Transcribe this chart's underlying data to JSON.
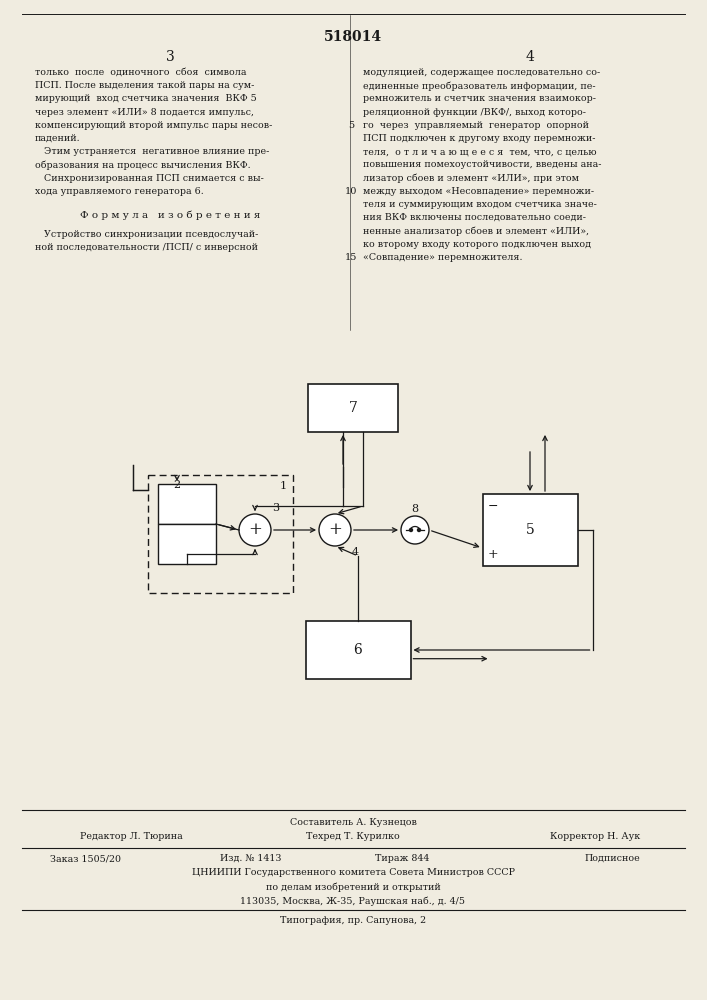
{
  "page_number": "518014",
  "col_left": "3",
  "col_right": "4",
  "text_left": [
    "только  после  одиночного  сбоя  символа",
    "ПСП. После выделения такой пары на сум-",
    "мирующий  вход счетчика значения  ВКФ 5",
    "через элемент «ИЛИ» 8 подается импульс,",
    "компенсирующий второй импульс пары несов-",
    "падений.",
    "   Этим устраняется  негативное влияние пре-",
    "образования на процесс вычисления ВКФ.",
    "   Синхронизированная ПСП снимается с вы-",
    "хода управляемого генератора 6."
  ],
  "formula_title": "Ф о р м у л а   и з о б р е т е н и я",
  "formula_text": [
    "   Устройство синхронизации псевдослучай-",
    "ной последовательности /ПСП/ с инверсной"
  ],
  "text_right": [
    "модуляцией, содержащее последовательно со-",
    "единенные преобразователь информации, пе-",
    "ремножитель и счетчик значения взаимокор-",
    "реляционной функции /ВКФ/, выход которо-",
    "го  через  управляемый  генератор  опорной",
    "ПСП подключен к другому входу перемножи-",
    "теля,  о т л и ч а ю щ е е с я  тем, что, с целью",
    "повышения помехоустойчивости, введены ана-",
    "лизатор сбоев и элемент «ИЛИ», при этом",
    "между выходом «Несовпадение» перемножи-",
    "теля и суммирующим входом счетчика значе-",
    "ния ВКФ включены последовательно соеди-",
    "ненные анализатор сбоев и элемент «ИЛИ»,",
    "ко второму входу которого подключен выход",
    "«Совпадение» перемножителя."
  ],
  "line_number_5": "5",
  "line_number_10": "10",
  "line_number_15": "15",
  "footer_composer": "Составитель А. Кузнецов",
  "footer_editor": "Редактор Л. Тюрина",
  "footer_techred": "Техред Т. Курилко",
  "footer_corrector": "Корректор Н. Аук",
  "footer_order": "Заказ 1505/20",
  "footer_izd": "Изд. № 1413",
  "footer_tirazh": "Тираж 844",
  "footer_podp": "Подписное",
  "footer_cniipи": "ЦНИИПИ Государственного комитета Совета Министров СССР",
  "footer_dela": "по делам изобретений и открытий",
  "footer_addr": "113035, Москва, Ж-35, Раушская наб., д. 4/5",
  "footer_tip": "Типография, пр. Сапунова, 2",
  "bg_color": "#f0ece0",
  "text_color": "#1a1a1a"
}
